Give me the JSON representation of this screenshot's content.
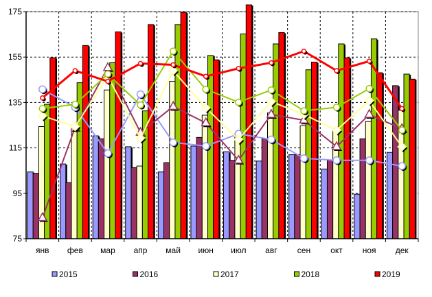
{
  "chart_data": {
    "type": "bar",
    "title": "",
    "xlabel": "",
    "ylabel": "",
    "ylim": [
      75,
      175
    ],
    "yticks": [
      75,
      95,
      115,
      135,
      155,
      175
    ],
    "grid": true,
    "legend_position": "bottom",
    "categories": [
      "янв",
      "фев",
      "мар",
      "апр",
      "май",
      "июн",
      "июл",
      "авг",
      "сен",
      "окт",
      "ноя",
      "дек"
    ],
    "series": [
      {
        "name": "2015",
        "color": "#9999ff",
        "values": [
          104.4,
          107.9,
          120.3,
          115.5,
          104.4,
          115.8,
          113.3,
          109.2,
          112.0,
          105.7,
          94.6,
          113.0
        ]
      },
      {
        "name": "2016",
        "color": "#993366",
        "values": [
          103.8,
          99.7,
          119.0,
          106.3,
          108.5,
          119.6,
          109.5,
          119.0,
          112.0,
          109.5,
          119.0,
          142.4
        ]
      },
      {
        "name": "2017",
        "color": "#ffffcc",
        "values": [
          124.4,
          122.2,
          140.5,
          107.0,
          144.3,
          129.4,
          121.2,
          130.4,
          124.7,
          123.4,
          126.6,
          131.6
        ]
      },
      {
        "name": "2018",
        "color": "#99cc00",
        "values": [
          134.2,
          143.7,
          152.5,
          131.3,
          169.3,
          155.7,
          165.2,
          160.8,
          149.4,
          160.8,
          163.0,
          147.5
        ]
      },
      {
        "name": "2019",
        "color": "#ff0000",
        "values": [
          154.7,
          160.1,
          166.1,
          169.3,
          174.7,
          153.8,
          178.2,
          165.8,
          152.8,
          154.7,
          148.1,
          145.3
        ]
      }
    ],
    "line_series": [
      {
        "name": "2015",
        "color": "#9999ff",
        "marker": "circle",
        "values": [
          140.8,
          132.9,
          112.6,
          138.6,
          117.4,
          115.8,
          121.2,
          118.7,
          110.4,
          109.5,
          109.5,
          107.0
        ]
      },
      {
        "name": "2016",
        "color": "#993366",
        "marker": "triangle",
        "values": [
          84.2,
          124.0,
          150.3,
          121.8,
          133.2,
          126.0,
          109.5,
          129.7,
          127.2,
          115.5,
          129.7,
          123.4
        ]
      },
      {
        "name": "2017",
        "color": "#ffff99",
        "marker": "diamond",
        "values": [
          129.1,
          124.4,
          146.5,
          119.3,
          149.0,
          132.6,
          118.7,
          135.4,
          129.7,
          122.8,
          135.8,
          115.5
        ]
      },
      {
        "name": "2018",
        "color": "#99cc00",
        "marker": "circle",
        "values": [
          132.3,
          134.2,
          147.5,
          133.9,
          157.6,
          140.8,
          135.1,
          140.5,
          131.3,
          132.9,
          141.1,
          122.8
        ]
      },
      {
        "name": "2019",
        "color": "#ff0000",
        "marker": "circle-small",
        "values": [
          137.0,
          149.0,
          144.3,
          152.2,
          151.6,
          146.5,
          150.0,
          152.5,
          157.6,
          149.0,
          153.2,
          132.3
        ]
      }
    ]
  }
}
